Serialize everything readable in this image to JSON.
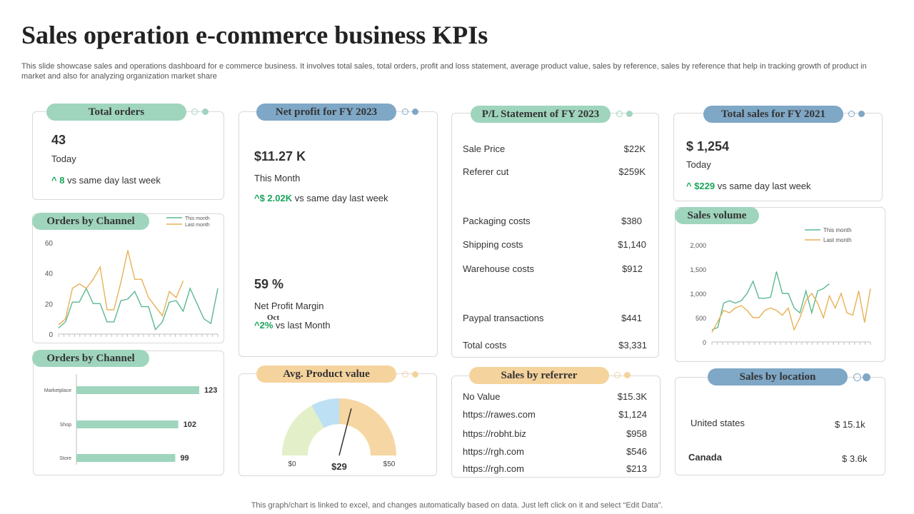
{
  "header": {
    "title": "Sales operation e-commerce business KPIs",
    "subtitle": "This slide showcase sales and operations dashboard for e commerce business. It involves total sales, total orders, profit and loss statement, average product value, sales by reference, sales by reference that help in tracking growth of product in market and also for analyzing organization market share"
  },
  "total_orders": {
    "label": "Total orders",
    "value": "43",
    "period": "Today",
    "delta": "^ 8",
    "delta_text": "vs same day last week"
  },
  "net_profit": {
    "label": "Net profit for FY 2023",
    "value": "$11.27 K",
    "period": "This Month",
    "delta": "^$ 2.02K",
    "delta_text": "vs same day last week",
    "margin_value": "59 %",
    "margin_label": "Net Profit Margin",
    "margin_delta": "^2%",
    "margin_delta_text": "vs last Month",
    "overlay": "Oct"
  },
  "pl": {
    "label": "P/L Statement of FY 2023",
    "rows": [
      {
        "k": "Sale Price",
        "v": "$22K"
      },
      {
        "k": "Referer cut",
        "v": "$259K"
      },
      {
        "k": "Packaging costs",
        "v": "$380"
      },
      {
        "k": "Shipping costs",
        "v": "$1,140"
      },
      {
        "k": "Warehouse costs",
        "v": "$912"
      },
      {
        "k": "Paypal transactions",
        "v": "$441"
      },
      {
        "k": "Total costs",
        "v": "$3,331"
      }
    ]
  },
  "total_sales": {
    "label": "Total sales for FY 2021",
    "value": "$ 1,254",
    "period": "Today",
    "delta": "^ $229",
    "delta_text": "vs same day last week"
  },
  "avg_product": {
    "label": "Avg. Product value"
  },
  "referrer": {
    "label": "Sales by referrer",
    "rows": [
      {
        "k": "No Value",
        "v": "$15.3K"
      },
      {
        "k": "https://rawes.com",
        "v": "$1,124"
      },
      {
        "k": "https://robht.biz",
        "v": "$958"
      },
      {
        "k": "https://rgh.com",
        "v": "$546"
      },
      {
        "k": "https://rgh.com",
        "v": "$213"
      }
    ]
  },
  "location": {
    "label": "Sales by location",
    "rows": [
      {
        "k": "United states",
        "v": "$ 15.1k"
      },
      {
        "k": "Canada",
        "v": "$ 3.6k"
      }
    ]
  },
  "orders_line_title": "Orders by Channel",
  "orders_bar_title": "Orders by Channel",
  "sales_volume_title": "Sales volume",
  "footer": "This graph/chart is linked to excel, and changes automatically based on data. Just left click on it and select “Edit Data”.",
  "colors": {
    "green": "#9fd5bd",
    "blue": "#7fa7c6",
    "orange": "#f5d39d",
    "line_green": "#5cb890",
    "line_orange": "#e8b156",
    "up": "#19a55a"
  },
  "chart_data": [
    {
      "type": "line",
      "title": "Orders by Channel",
      "ylim": [
        0,
        60
      ],
      "yticks": [
        "0",
        "20",
        "40",
        "60"
      ],
      "series": [
        {
          "name": "This month",
          "values": [
            4,
            8,
            21,
            21,
            30,
            20,
            20,
            8,
            8,
            22,
            23,
            28,
            18,
            18,
            3,
            8,
            21,
            22,
            15,
            30,
            20,
            10,
            7,
            30
          ]
        },
        {
          "name": "Last month",
          "values": [
            6,
            10,
            30,
            33,
            30,
            36,
            44,
            16,
            16,
            34,
            55,
            36,
            36,
            24,
            18,
            12,
            28,
            24,
            35
          ]
        }
      ]
    },
    {
      "type": "bar",
      "title": "Orders by Channel",
      "categories": [
        "Marketplace",
        "Shop",
        "Store"
      ],
      "values": [
        123,
        102,
        99
      ]
    },
    {
      "type": "line",
      "title": "Sales volume",
      "ylim": [
        0,
        2000
      ],
      "yticks": [
        "0",
        "500",
        "1,000",
        "1,500",
        "2,000"
      ],
      "series": [
        {
          "name": "This month",
          "values": [
            250,
            300,
            800,
            850,
            800,
            850,
            1000,
            1250,
            900,
            900,
            920,
            1450,
            1000,
            1000,
            700,
            600,
            1050,
            600,
            1050,
            1100,
            1200
          ]
        },
        {
          "name": "Last month",
          "values": [
            200,
            420,
            650,
            600,
            700,
            750,
            650,
            500,
            500,
            650,
            700,
            650,
            550,
            700,
            250,
            500,
            850,
            1000,
            800,
            500,
            950,
            700,
            1000,
            600,
            550,
            1050,
            400,
            1100
          ]
        }
      ]
    },
    {
      "type": "gauge",
      "title": "Avg. Product value",
      "min": 0,
      "max": 50,
      "value": 29,
      "min_label": "$0",
      "max_label": "$50",
      "value_label": "$29",
      "segments": [
        {
          "to": 17,
          "color": "#e3efc8"
        },
        {
          "to": 25,
          "color": "#bde0f4"
        },
        {
          "to": 50,
          "color": "#f6d6a2"
        }
      ]
    }
  ]
}
